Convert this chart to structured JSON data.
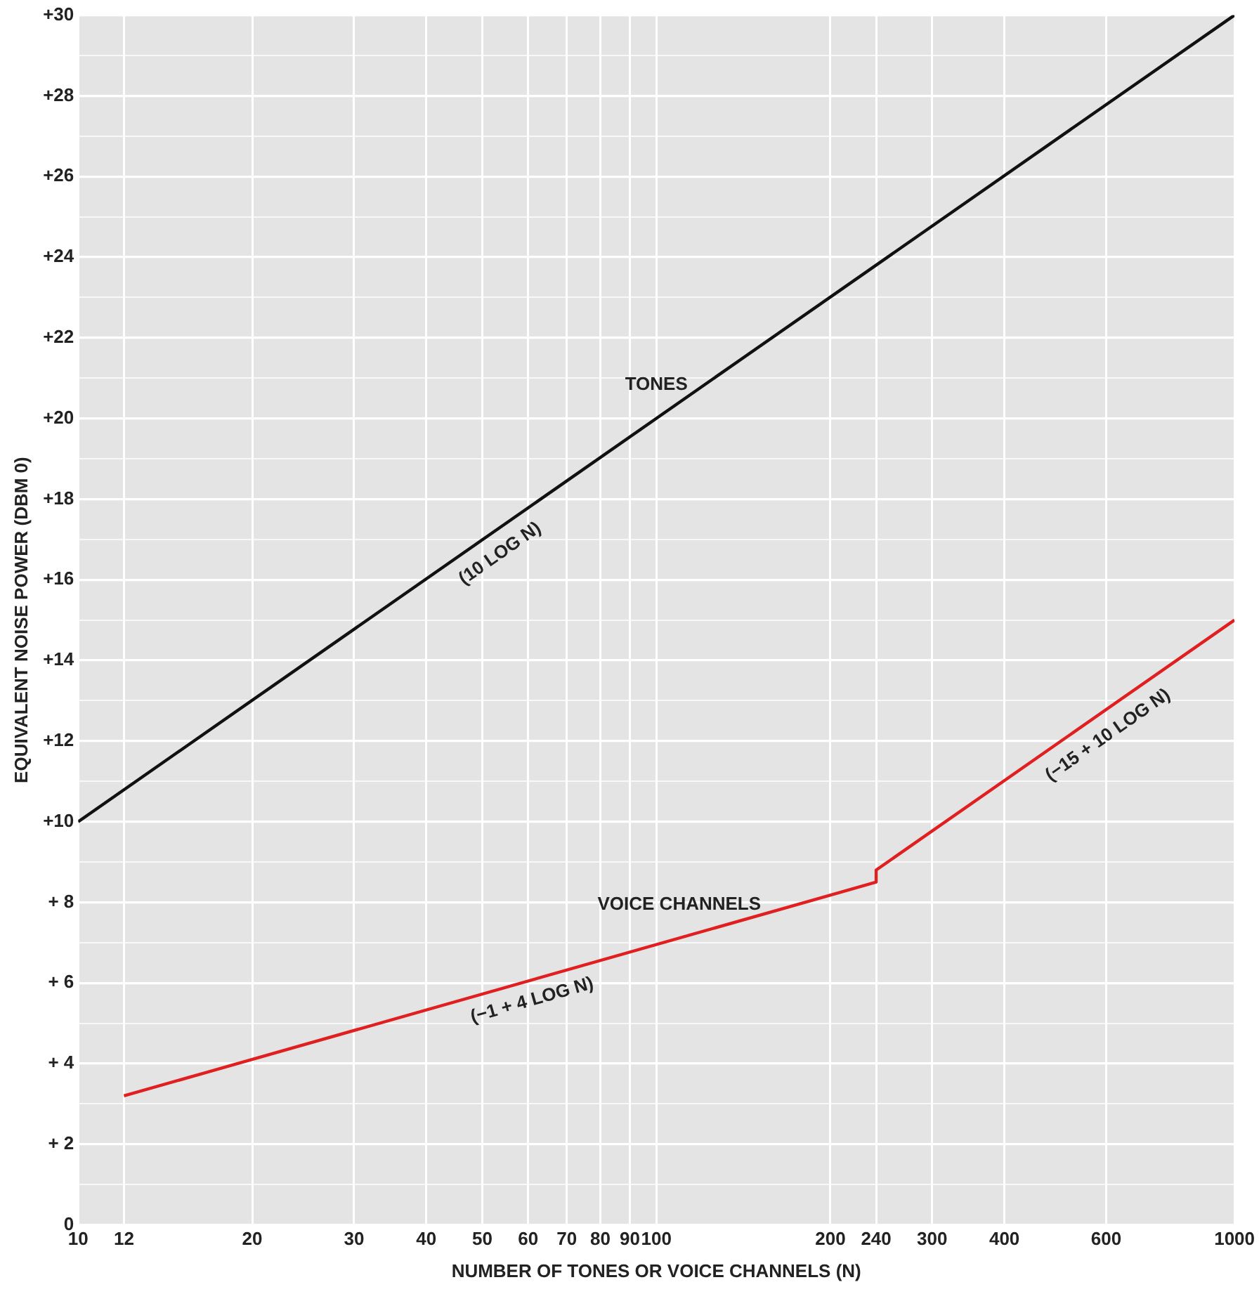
{
  "chart_data": {
    "type": "line",
    "xlabel": "NUMBER OF TONES OR VOICE CHANNELS (N)",
    "ylabel": "EQUIVALENT NOISE POWER (DBM 0)",
    "log": "x",
    "grid": true,
    "legend": false,
    "marker": "none",
    "line_style": "solid",
    "xlim": [
      10,
      1000
    ],
    "xticks": [
      10,
      12,
      20,
      30,
      40,
      50,
      60,
      70,
      80,
      90,
      100,
      200,
      240,
      300,
      400,
      600,
      1000
    ],
    "ylim": [
      0,
      30
    ],
    "yticks": [
      {
        "value": 0,
        "label": "0"
      },
      {
        "value": 1,
        "label": null
      },
      {
        "value": 2,
        "label": "+ 2"
      },
      {
        "value": 3,
        "label": null
      },
      {
        "value": 4,
        "label": "+ 4"
      },
      {
        "value": 5,
        "label": null
      },
      {
        "value": 6,
        "label": "+ 6"
      },
      {
        "value": 7,
        "label": null
      },
      {
        "value": 8,
        "label": "+ 8"
      },
      {
        "value": 9,
        "label": null
      },
      {
        "value": 10,
        "label": "+10"
      },
      {
        "value": 11,
        "label": null
      },
      {
        "value": 12,
        "label": "+12"
      },
      {
        "value": 13,
        "label": null
      },
      {
        "value": 14,
        "label": "+14"
      },
      {
        "value": 15,
        "label": null
      },
      {
        "value": 16,
        "label": "+16"
      },
      {
        "value": 17,
        "label": null
      },
      {
        "value": 18,
        "label": "+18"
      },
      {
        "value": 19,
        "label": null
      },
      {
        "value": 20,
        "label": "+20"
      },
      {
        "value": 21,
        "label": null
      },
      {
        "value": 22,
        "label": "+22"
      },
      {
        "value": 23,
        "label": null
      },
      {
        "value": 24,
        "label": "+24"
      },
      {
        "value": 25,
        "label": null
      },
      {
        "value": 26,
        "label": "+26"
      },
      {
        "value": 27,
        "label": null
      },
      {
        "value": 28,
        "label": "+28"
      },
      {
        "value": 29,
        "label": null
      },
      {
        "value": 30,
        "label": "+30"
      }
    ],
    "series": [
      {
        "name": "TONES",
        "color": "#111111",
        "x": [
          10,
          1000
        ],
        "values": [
          10,
          30
        ]
      },
      {
        "name": "VOICE CHANNELS",
        "color": "#e02020",
        "x": [
          12,
          240,
          240,
          1000
        ],
        "values": [
          3.2,
          8.5,
          8.8,
          15
        ]
      }
    ],
    "annotations": [
      {
        "text": "(10 LOG N)",
        "x": 51,
        "y": 17.1
      },
      {
        "text": "(−1 + 4 LOG N)",
        "x": 59.5,
        "y": 6.1
      },
      {
        "text": "(−15 + 10 LOG N)",
        "x": 574,
        "y": 12.6
      }
    ]
  }
}
